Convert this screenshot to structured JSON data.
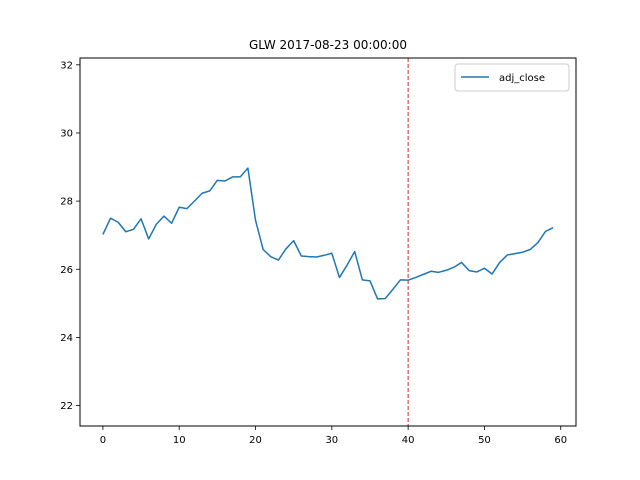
{
  "chart_data": {
    "type": "line",
    "title": "GLW 2017-08-23 00:00:00",
    "xlabel": "",
    "ylabel": "",
    "xlim": [
      -3,
      62
    ],
    "ylim": [
      21.4,
      32.2
    ],
    "xticks": [
      0,
      10,
      20,
      30,
      40,
      50,
      60
    ],
    "yticks": [
      22,
      24,
      26,
      28,
      30,
      32
    ],
    "grid": false,
    "legend": {
      "placement": "top-right",
      "entries": [
        "adj_close"
      ]
    },
    "series": [
      {
        "name": "adj_close",
        "color": "#1f77b4",
        "x": [
          0,
          1,
          2,
          3,
          4,
          5,
          6,
          7,
          8,
          9,
          10,
          11,
          12,
          13,
          14,
          15,
          16,
          17,
          18,
          19,
          20,
          21,
          22,
          23,
          24,
          25,
          26,
          27,
          28,
          29,
          30,
          31,
          32,
          33,
          34,
          35,
          36,
          37,
          38,
          39,
          40,
          41,
          42,
          43,
          44,
          45,
          46,
          47,
          48,
          49,
          50,
          51,
          52,
          53,
          54,
          55,
          56,
          57,
          58,
          59
        ],
        "values": [
          27.02,
          27.5,
          27.38,
          27.1,
          27.17,
          27.48,
          26.89,
          27.32,
          27.56,
          27.35,
          27.82,
          27.78,
          28.0,
          28.23,
          28.3,
          28.61,
          28.59,
          28.71,
          28.71,
          28.97,
          27.44,
          26.58,
          26.37,
          26.27,
          26.6,
          26.84,
          26.39,
          26.37,
          26.36,
          26.41,
          26.47,
          25.76,
          26.12,
          26.52,
          25.69,
          25.66,
          25.13,
          25.14,
          25.41,
          25.69,
          25.68,
          25.76,
          25.85,
          25.94,
          25.91,
          25.97,
          26.06,
          26.2,
          25.96,
          25.92,
          26.03,
          25.86,
          26.2,
          26.42,
          26.46,
          26.5,
          26.58,
          26.78,
          27.11,
          27.22
        ]
      }
    ],
    "annotations": [
      {
        "type": "vertical-line",
        "x": 40,
        "color": "#d62728",
        "style": "dashed"
      }
    ]
  }
}
